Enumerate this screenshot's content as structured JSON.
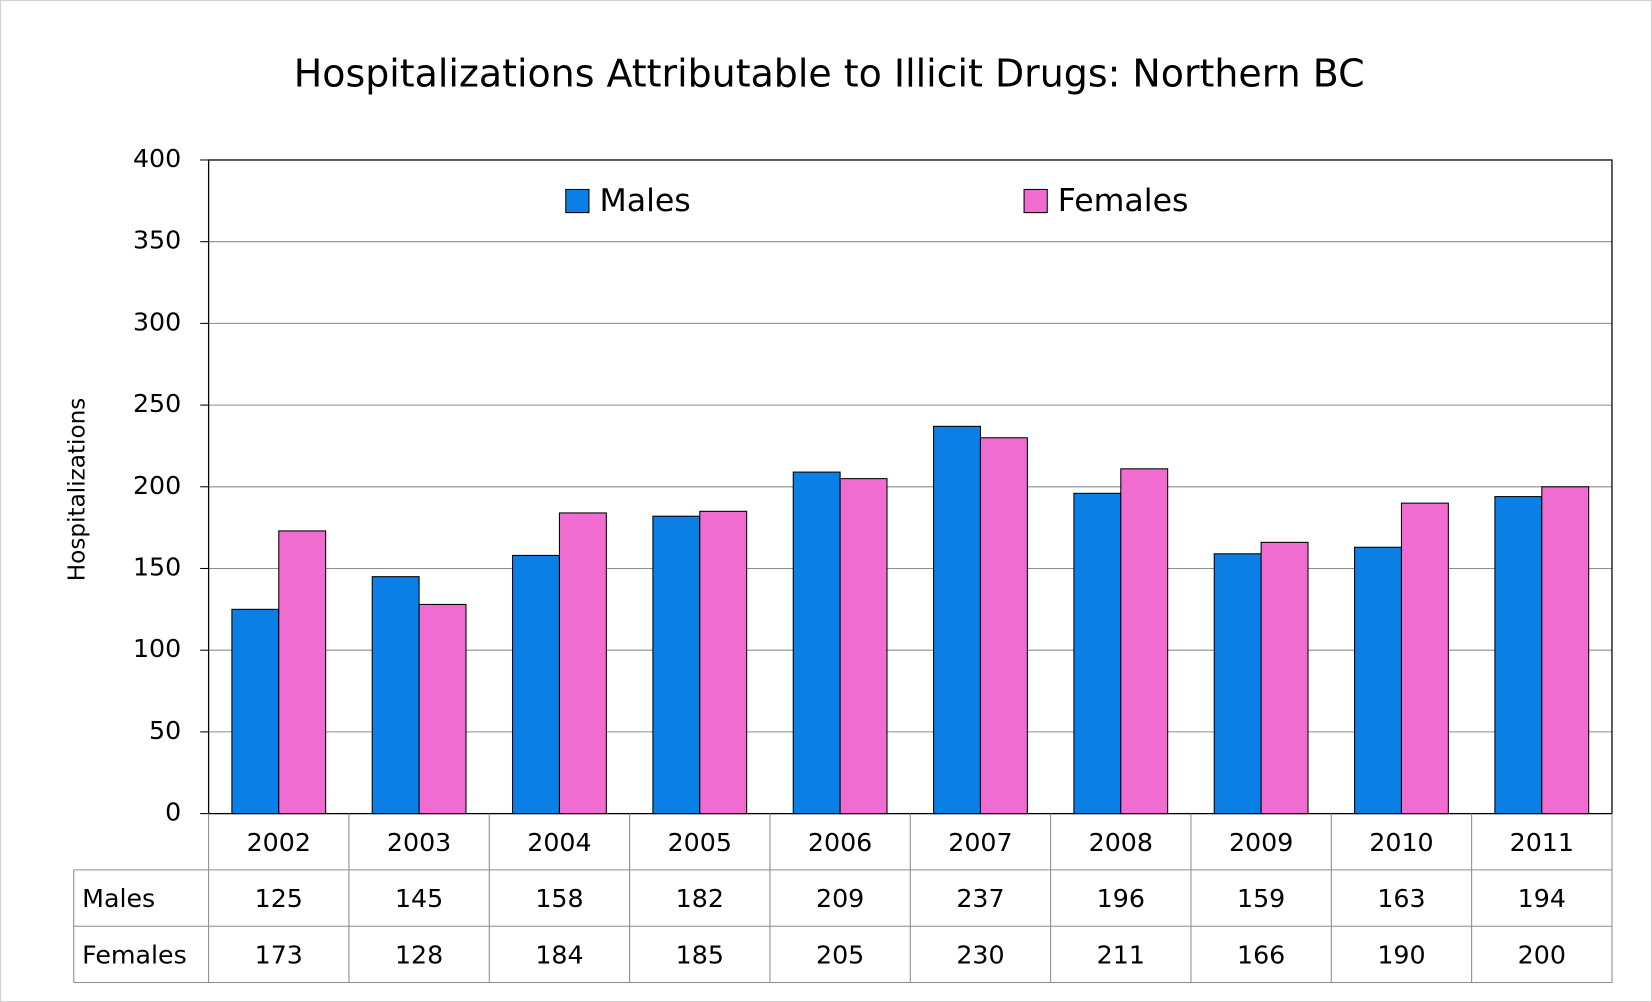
{
  "chart_data": {
    "type": "bar",
    "title": "Hospitalizations Attributable to Illicit Drugs: Northern BC",
    "ylabel": "Hospitalizations",
    "categories": [
      "2002",
      "2003",
      "2004",
      "2005",
      "2006",
      "2007",
      "2008",
      "2009",
      "2010",
      "2011"
    ],
    "series": [
      {
        "name": "Males",
        "color": "#0a7fe6",
        "values": [
          125,
          145,
          158,
          182,
          209,
          237,
          196,
          159,
          163,
          194
        ]
      },
      {
        "name": "Females",
        "color": "#f06cd0",
        "values": [
          173,
          128,
          184,
          185,
          205,
          230,
          211,
          166,
          190,
          200
        ]
      }
    ],
    "ylim": [
      0,
      400
    ],
    "yticks": [
      0,
      50,
      100,
      150,
      200,
      250,
      300,
      350,
      400
    ],
    "grid": true
  }
}
